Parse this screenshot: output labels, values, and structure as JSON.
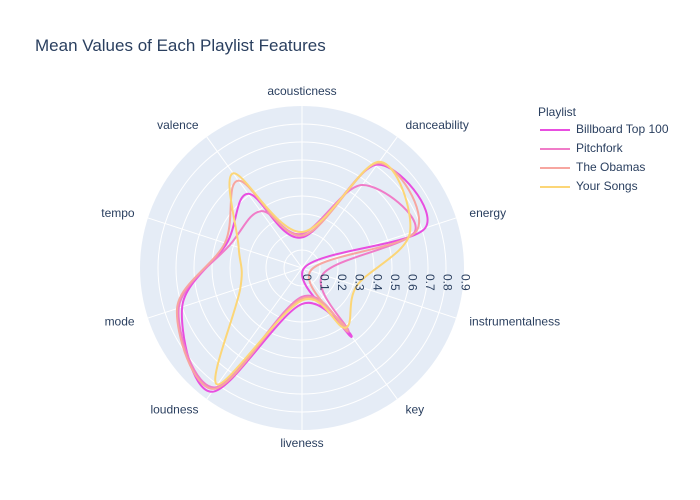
{
  "chart_data": {
    "type": "line",
    "subtype": "polar-spline",
    "title": "Mean Values of Each Playlist Features",
    "theta_categories": [
      "acousticness",
      "danceability",
      "energy",
      "instrumentalness",
      "key",
      "liveness",
      "loudness",
      "mode",
      "tempo",
      "valence"
    ],
    "radial_range": [
      0,
      0.9
    ],
    "radial_ticks": [
      "0",
      "0.1",
      "0.2",
      "0.3",
      "0.4",
      "0.5",
      "0.6",
      "0.7",
      "0.8",
      "0.9"
    ],
    "legend_title": "Playlist",
    "legend_position": "top-right",
    "grid": true,
    "background_color": "#e5ecf6",
    "series": [
      {
        "name": "Billboard Top 100",
        "color": "#e84ee0",
        "values": [
          0.17,
          0.71,
          0.72,
          0.01,
          0.47,
          0.2,
          0.85,
          0.7,
          0.44,
          0.51
        ]
      },
      {
        "name": "Pitchfork",
        "color": "#f07cc8",
        "values": [
          0.19,
          0.57,
          0.66,
          0.12,
          0.44,
          0.16,
          0.82,
          0.72,
          0.42,
          0.39
        ]
      },
      {
        "name": "The Obamas",
        "color": "#f7a6a0",
        "values": [
          0.18,
          0.72,
          0.67,
          0.05,
          0.43,
          0.17,
          0.83,
          0.73,
          0.45,
          0.6
        ]
      },
      {
        "name": "Your Songs",
        "color": "#fcd677",
        "values": [
          0.2,
          0.73,
          0.63,
          0.32,
          0.41,
          0.18,
          0.8,
          0.36,
          0.37,
          0.65
        ]
      }
    ]
  }
}
